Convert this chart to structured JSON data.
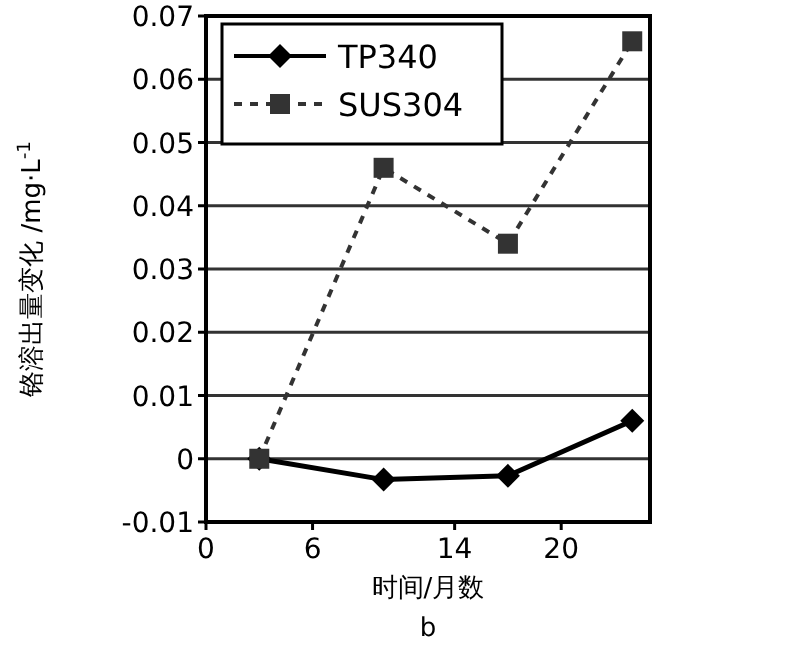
{
  "chart_data": {
    "type": "line",
    "xlabel": "时间/月数",
    "ylabel": "铬溶出量变化 /mg·L$^{-1}$",
    "annotations": [
      "b"
    ],
    "x": [
      3,
      10,
      17,
      24
    ],
    "series": [
      {
        "name": "TP340",
        "color": "#000000",
        "values": [
          0,
          -0.0033,
          -0.0027,
          0.006
        ],
        "marker": "diamond",
        "line_style": "solid"
      },
      {
        "name": "SUS304",
        "color": "#333333",
        "values": [
          0,
          0.046,
          0.034,
          0.066
        ],
        "marker": "square",
        "line_style": "dashed"
      }
    ],
    "xlim": [
      0,
      25
    ],
    "xticks": [
      0,
      6,
      14,
      20
    ],
    "ylim": [
      -0.01,
      0.07
    ],
    "yticks": [
      -0.01,
      0,
      0.01,
      0.02,
      0.03,
      0.04,
      0.05,
      0.06,
      0.07
    ],
    "grid": "y",
    "legend": "top left"
  }
}
